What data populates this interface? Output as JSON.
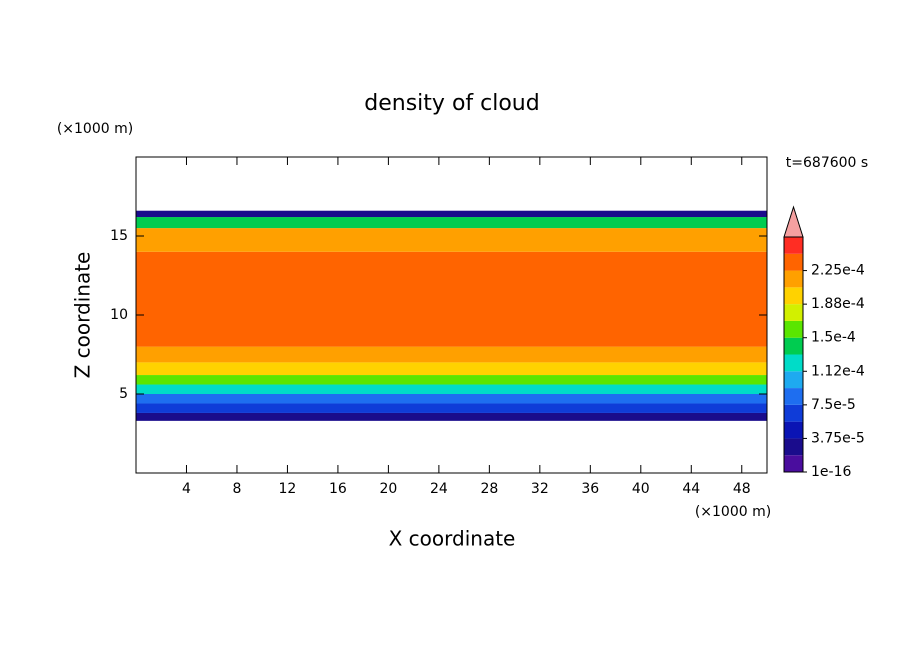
{
  "chart_data": {
    "type": "contour",
    "title": "density of cloud",
    "x_label": "X coordinate",
    "y_label": "Z coordinate",
    "x_unit": "(×1000 m)",
    "y_unit": "(×1000 m)",
    "annotation": "t=687600 s",
    "xlim": [
      0,
      50
    ],
    "xticks": [
      4,
      8,
      12,
      16,
      20,
      24,
      28,
      32,
      36,
      40,
      44,
      48
    ],
    "ylim": [
      0,
      20
    ],
    "yticks": [
      5,
      10,
      15
    ],
    "z_edges": [
      3.3,
      3.8,
      4.4,
      5.0,
      5.6,
      6.2,
      7.0,
      8.0,
      14.0,
      15.5,
      16.2,
      16.6
    ],
    "values": [
      2e-05,
      6e-05,
      9e-05,
      0.00013,
      0.00016,
      0.000195,
      0.000215,
      0.00024,
      0.00022,
      0.00014,
      3e-05
    ],
    "clim": [
      1e-16,
      0.0002625
    ],
    "colors": [
      "#4a0d9e",
      "#1a0c8c",
      "#0a14b4",
      "#0f3cd8",
      "#1e6ef0",
      "#1eaaf0",
      "#00dcc8",
      "#00cc50",
      "#5ae600",
      "#d2f000",
      "#ffd200",
      "#ffa000",
      "#ff6400",
      "#ff2d23"
    ],
    "over_color": "#f5a0a0",
    "colorbar_ticks": [
      {
        "value": 1e-16,
        "label": "1e-16"
      },
      {
        "value": 3.75e-05,
        "label": "3.75e-5"
      },
      {
        "value": 7.5e-05,
        "label": "7.5e-5"
      },
      {
        "value": 0.0001125,
        "label": "1.12e-4"
      },
      {
        "value": 0.00015,
        "label": "1.5e-4"
      },
      {
        "value": 0.0001875,
        "label": "1.88e-4"
      },
      {
        "value": 0.000225,
        "label": "2.25e-4"
      }
    ]
  }
}
